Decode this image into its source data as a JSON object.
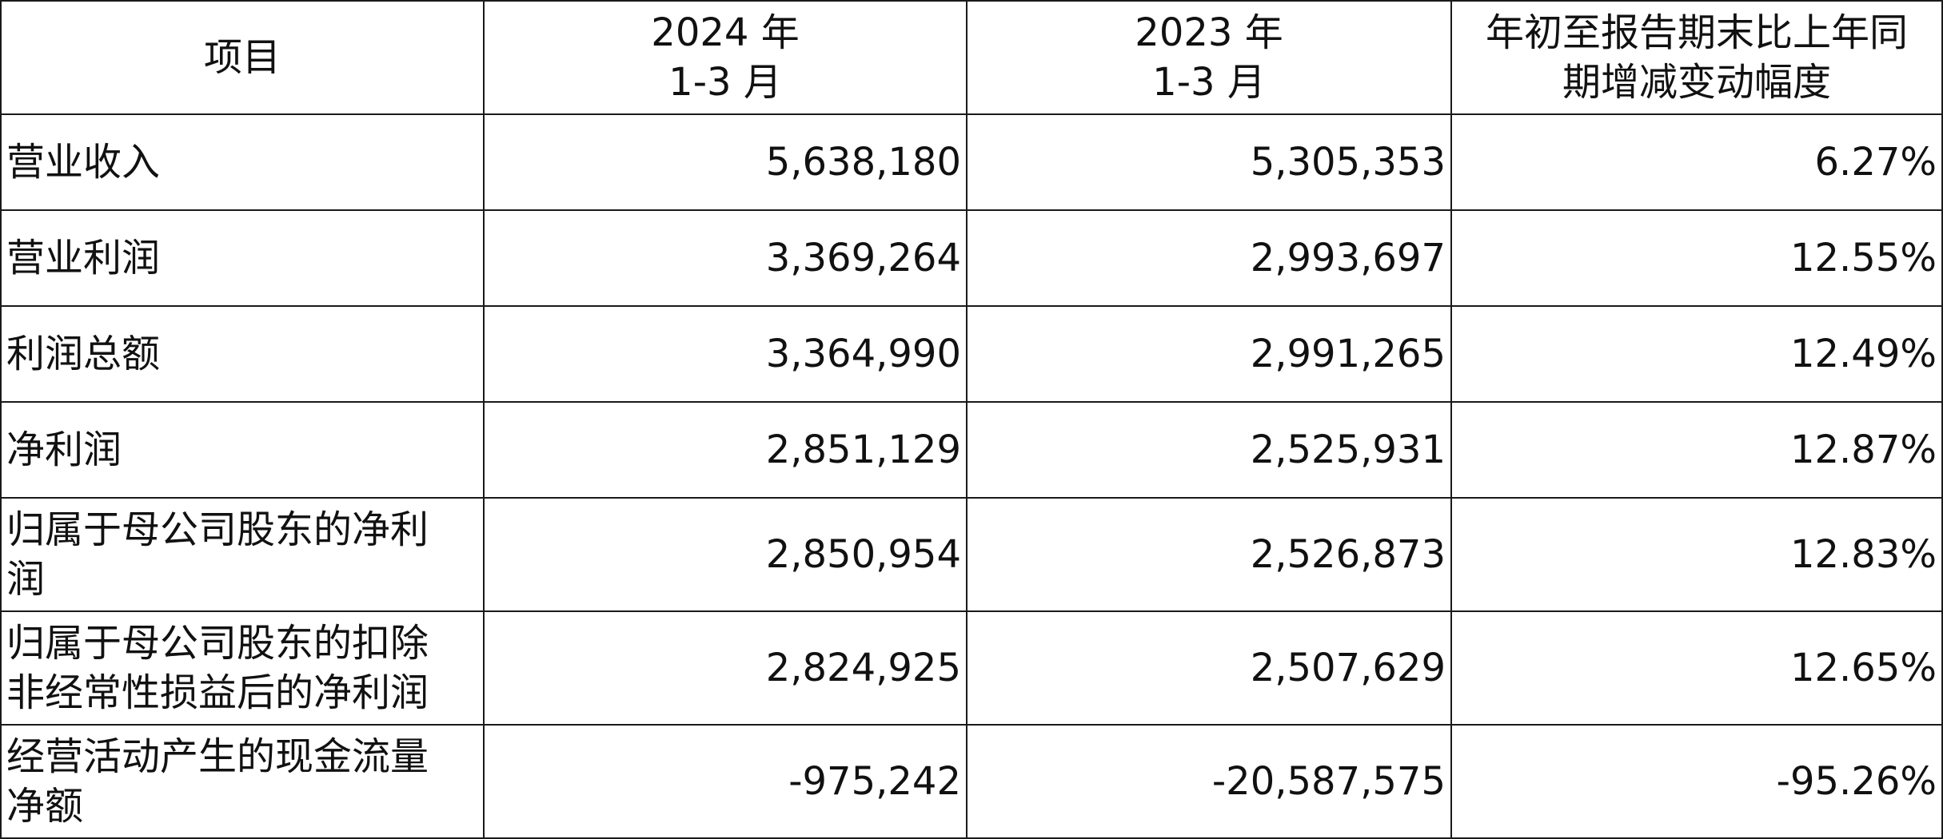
{
  "table": {
    "headers": [
      {
        "lines": [
          "项目"
        ]
      },
      {
        "lines": [
          "2024 年",
          "1-3 月"
        ]
      },
      {
        "lines": [
          "2023 年",
          "1-3 月"
        ]
      },
      {
        "lines": [
          "年初至报告期末比上年同",
          "期增减变动幅度"
        ]
      }
    ],
    "rows": [
      {
        "label": [
          "营业收入"
        ],
        "y2024": "5,638,180",
        "y2023": "5,305,353",
        "change": "6.27%"
      },
      {
        "label": [
          "营业利润"
        ],
        "y2024": "3,369,264",
        "y2023": "2,993,697",
        "change": "12.55%"
      },
      {
        "label": [
          "利润总额"
        ],
        "y2024": "3,364,990",
        "y2023": "2,991,265",
        "change": "12.49%"
      },
      {
        "label": [
          "净利润"
        ],
        "y2024": "2,851,129",
        "y2023": "2,525,931",
        "change": "12.87%"
      },
      {
        "label": [
          "归属于母公司股东的净利",
          "润"
        ],
        "y2024": "2,850,954",
        "y2023": "2,526,873",
        "change": "12.83%"
      },
      {
        "label": [
          "归属于母公司股东的扣除",
          "非经常性损益后的净利润"
        ],
        "y2024": "2,824,925",
        "y2023": "2,507,629",
        "change": "12.65%"
      },
      {
        "label": [
          "经营活动产生的现金流量",
          "净额"
        ],
        "y2024": "-975,242",
        "y2023": "-20,587,575",
        "change": "-95.26%"
      }
    ]
  }
}
